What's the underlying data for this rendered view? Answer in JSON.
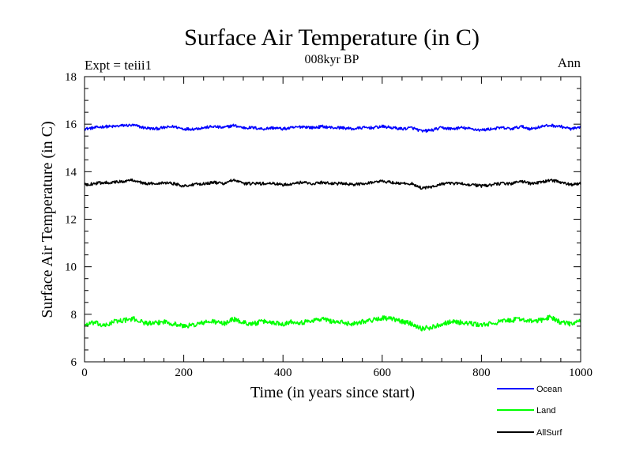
{
  "chart_data": {
    "type": "line",
    "title": "Surface Air Temperature (in C)",
    "subtitle": "008kyr BP",
    "left_label": "Expt = teiii1",
    "right_label": "Ann",
    "xlabel": "Time (in years since start)",
    "ylabel": "Surface Air Temperature (in C)",
    "xlim": [
      0,
      1000
    ],
    "ylim": [
      6,
      18
    ],
    "x_ticks": [
      0,
      200,
      400,
      600,
      800,
      1000
    ],
    "x_tick_labels": [
      "0",
      "200",
      "400",
      "600",
      "800",
      "1000"
    ],
    "y_ticks": [
      6,
      8,
      10,
      12,
      14,
      16,
      18
    ],
    "y_tick_labels": [
      "6",
      "8",
      "10",
      "12",
      "14",
      "16",
      "18"
    ],
    "grid": false,
    "legend_position": "bottom-right, below plot",
    "series": [
      {
        "name": "Ocean",
        "color": "#0000ff",
        "x": [
          0,
          20,
          40,
          60,
          80,
          100,
          120,
          140,
          160,
          180,
          200,
          220,
          240,
          260,
          280,
          300,
          320,
          340,
          360,
          380,
          400,
          420,
          440,
          460,
          480,
          500,
          520,
          540,
          560,
          580,
          600,
          620,
          640,
          660,
          680,
          700,
          720,
          740,
          760,
          780,
          800,
          820,
          840,
          860,
          880,
          900,
          920,
          940,
          960,
          980,
          1000
        ],
        "values": [
          15.8,
          15.85,
          15.9,
          15.9,
          15.95,
          15.95,
          15.85,
          15.8,
          15.85,
          15.9,
          15.8,
          15.8,
          15.85,
          15.9,
          15.85,
          15.95,
          15.85,
          15.85,
          15.8,
          15.85,
          15.8,
          15.85,
          15.9,
          15.85,
          15.9,
          15.85,
          15.85,
          15.8,
          15.85,
          15.85,
          15.9,
          15.85,
          15.8,
          15.85,
          15.7,
          15.75,
          15.85,
          15.8,
          15.85,
          15.8,
          15.75,
          15.8,
          15.85,
          15.8,
          15.9,
          15.8,
          15.9,
          15.95,
          15.9,
          15.8,
          15.85
        ]
      },
      {
        "name": "Land",
        "color": "#00ff00",
        "x": [
          0,
          20,
          40,
          60,
          80,
          100,
          120,
          140,
          160,
          180,
          200,
          220,
          240,
          260,
          280,
          300,
          320,
          340,
          360,
          380,
          400,
          420,
          440,
          460,
          480,
          500,
          520,
          540,
          560,
          580,
          600,
          620,
          640,
          660,
          680,
          700,
          720,
          740,
          760,
          780,
          800,
          820,
          840,
          860,
          880,
          900,
          920,
          940,
          960,
          980,
          1000
        ],
        "values": [
          7.55,
          7.65,
          7.5,
          7.7,
          7.75,
          7.8,
          7.65,
          7.6,
          7.7,
          7.6,
          7.5,
          7.55,
          7.65,
          7.7,
          7.6,
          7.8,
          7.65,
          7.6,
          7.7,
          7.65,
          7.6,
          7.7,
          7.65,
          7.75,
          7.8,
          7.7,
          7.65,
          7.6,
          7.7,
          7.75,
          7.85,
          7.8,
          7.7,
          7.6,
          7.4,
          7.45,
          7.6,
          7.7,
          7.65,
          7.6,
          7.55,
          7.6,
          7.7,
          7.75,
          7.8,
          7.7,
          7.75,
          7.9,
          7.65,
          7.6,
          7.7
        ]
      },
      {
        "name": "AllSurf",
        "color": "#000000",
        "x": [
          0,
          20,
          40,
          60,
          80,
          100,
          120,
          140,
          160,
          180,
          200,
          220,
          240,
          260,
          280,
          300,
          320,
          340,
          360,
          380,
          400,
          420,
          440,
          460,
          480,
          500,
          520,
          540,
          560,
          580,
          600,
          620,
          640,
          660,
          680,
          700,
          720,
          740,
          760,
          780,
          800,
          820,
          840,
          860,
          880,
          900,
          920,
          940,
          960,
          980,
          1000
        ],
        "values": [
          13.45,
          13.5,
          13.55,
          13.55,
          13.6,
          13.65,
          13.5,
          13.5,
          13.55,
          13.5,
          13.4,
          13.45,
          13.5,
          13.55,
          13.5,
          13.65,
          13.5,
          13.5,
          13.5,
          13.5,
          13.45,
          13.5,
          13.55,
          13.5,
          13.55,
          13.5,
          13.5,
          13.45,
          13.5,
          13.55,
          13.6,
          13.55,
          13.5,
          13.5,
          13.3,
          13.35,
          13.5,
          13.5,
          13.5,
          13.45,
          13.4,
          13.45,
          13.5,
          13.5,
          13.6,
          13.5,
          13.55,
          13.65,
          13.55,
          13.45,
          13.5
        ]
      }
    ]
  }
}
